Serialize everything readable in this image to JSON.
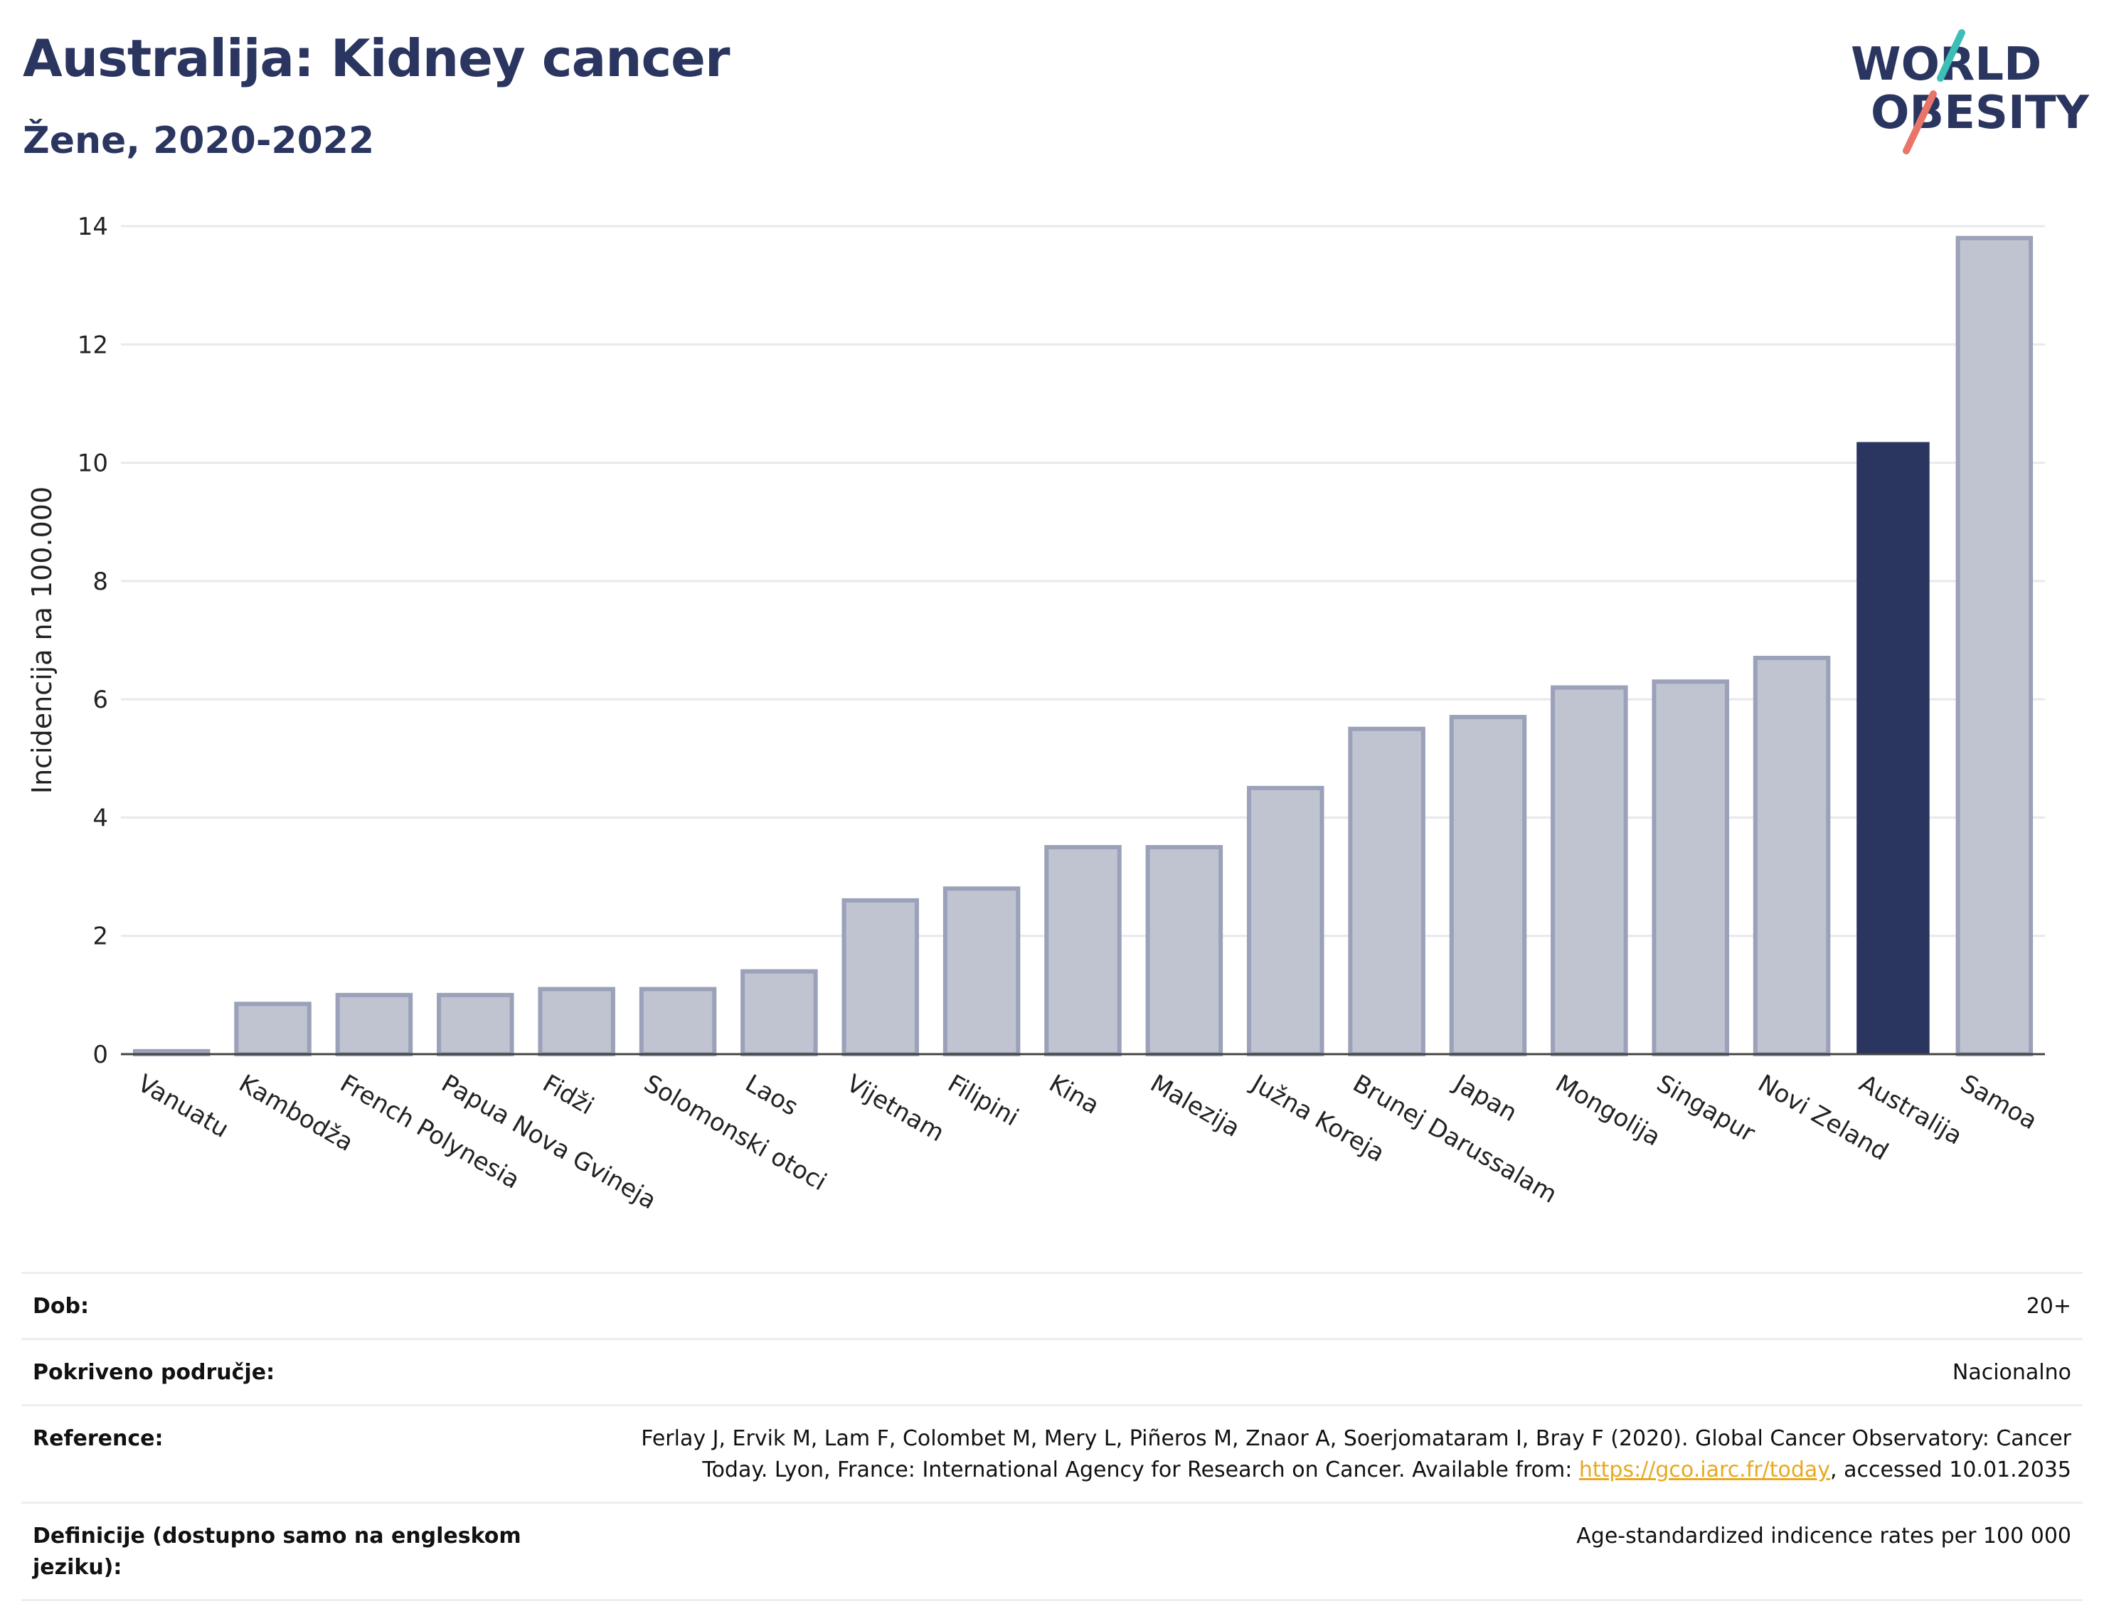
{
  "header": {
    "title": "Australija: Kidney cancer",
    "subtitle": "Žene, 2020-2022"
  },
  "logo": {
    "line1": "WORLD",
    "line2": "OBESITY",
    "colors": {
      "text": "#2a3560",
      "slash_top": "#3bbfb6",
      "slash_bottom": "#e9756a"
    }
  },
  "chart_data": {
    "type": "bar",
    "ylabel": "Incidencija na 100.000",
    "xlabel": "",
    "ylim": [
      0,
      14
    ],
    "yticks": [
      0,
      2,
      4,
      6,
      8,
      10,
      12,
      14
    ],
    "grid": true,
    "categories": [
      "Vanuatu",
      "Kambodža",
      "French Polynesia",
      "Papua Nova Gvineja",
      "Fidži",
      "Solomonski otoci",
      "Laos",
      "Vijetnam",
      "Filipini",
      "Kina",
      "Malezija",
      "Južna Koreja",
      "Brunej Darussalam",
      "Japan",
      "Mongolija",
      "Singapur",
      "Novi Zeland",
      "Australija",
      "Samoa"
    ],
    "values": [
      0.05,
      0.85,
      1.0,
      1.0,
      1.1,
      1.1,
      1.4,
      2.6,
      2.8,
      3.5,
      3.5,
      4.5,
      5.5,
      5.7,
      6.2,
      6.3,
      6.7,
      10.35,
      13.8
    ],
    "highlight": "Australija",
    "colors": {
      "bar": "#c0c4d1",
      "bar_edge": "#9aa1b8",
      "highlight": "#2a3560",
      "grid": "#e8e8ee",
      "axis": "#444444"
    }
  },
  "meta": {
    "rows": [
      {
        "key": "Dob:",
        "value": "20+"
      },
      {
        "key": "Pokriveno područje:",
        "value": "Nacionalno"
      },
      {
        "key": "Reference:",
        "value_line1": "Ferlay J, Ervik M, Lam F, Colombet M, Mery L, Piñeros M, Znaor A, Soerjomataram I, Bray F (2020). Global Cancer Observatory: Cancer",
        "value_line2_pre": "Today. Lyon, France: International Agency for Research on Cancer. Available from: ",
        "link": "https://gco.iarc.fr/today",
        "value_line2_post": ", accessed 10.01.2035"
      },
      {
        "key": "Definicije (dostupno samo na engleskom jeziku):",
        "value": "Age-standardized indicence rates per 100 000"
      }
    ]
  }
}
